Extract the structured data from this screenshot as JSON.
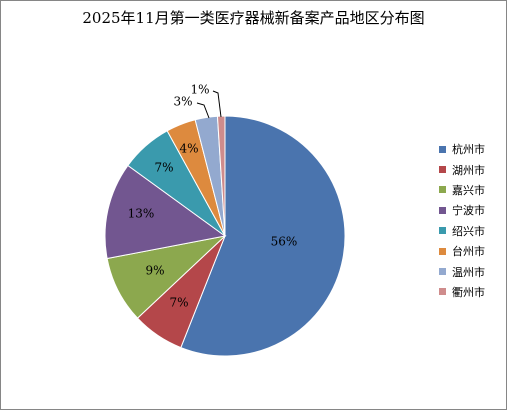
{
  "chart_data": {
    "type": "pie",
    "title": "2025年11月第一类医疗器械新备案产品地区分布图",
    "slices": [
      {
        "label": "杭州市",
        "value": 56,
        "data_label": "56%",
        "color": "#4A74AE"
      },
      {
        "label": "湖州市",
        "value": 7,
        "data_label": "7%",
        "color": "#B4474A"
      },
      {
        "label": "嘉兴市",
        "value": 9,
        "data_label": "9%",
        "color": "#8CA84E"
      },
      {
        "label": "宁波市",
        "value": 13,
        "data_label": "13%",
        "color": "#725690"
      },
      {
        "label": "绍兴市",
        "value": 7,
        "data_label": "7%",
        "color": "#3A9AAD"
      },
      {
        "label": "台州市",
        "value": 4,
        "data_label": "4%",
        "color": "#DD8A3E"
      },
      {
        "label": "温州市",
        "value": 3,
        "data_label": "3%",
        "color": "#93A9CF"
      },
      {
        "label": "衢州市",
        "value": 1,
        "data_label": "1%",
        "color": "#CF8C8C"
      }
    ],
    "start_angle": "12 o'clock",
    "direction": "clockwise",
    "legend_position": "right"
  }
}
